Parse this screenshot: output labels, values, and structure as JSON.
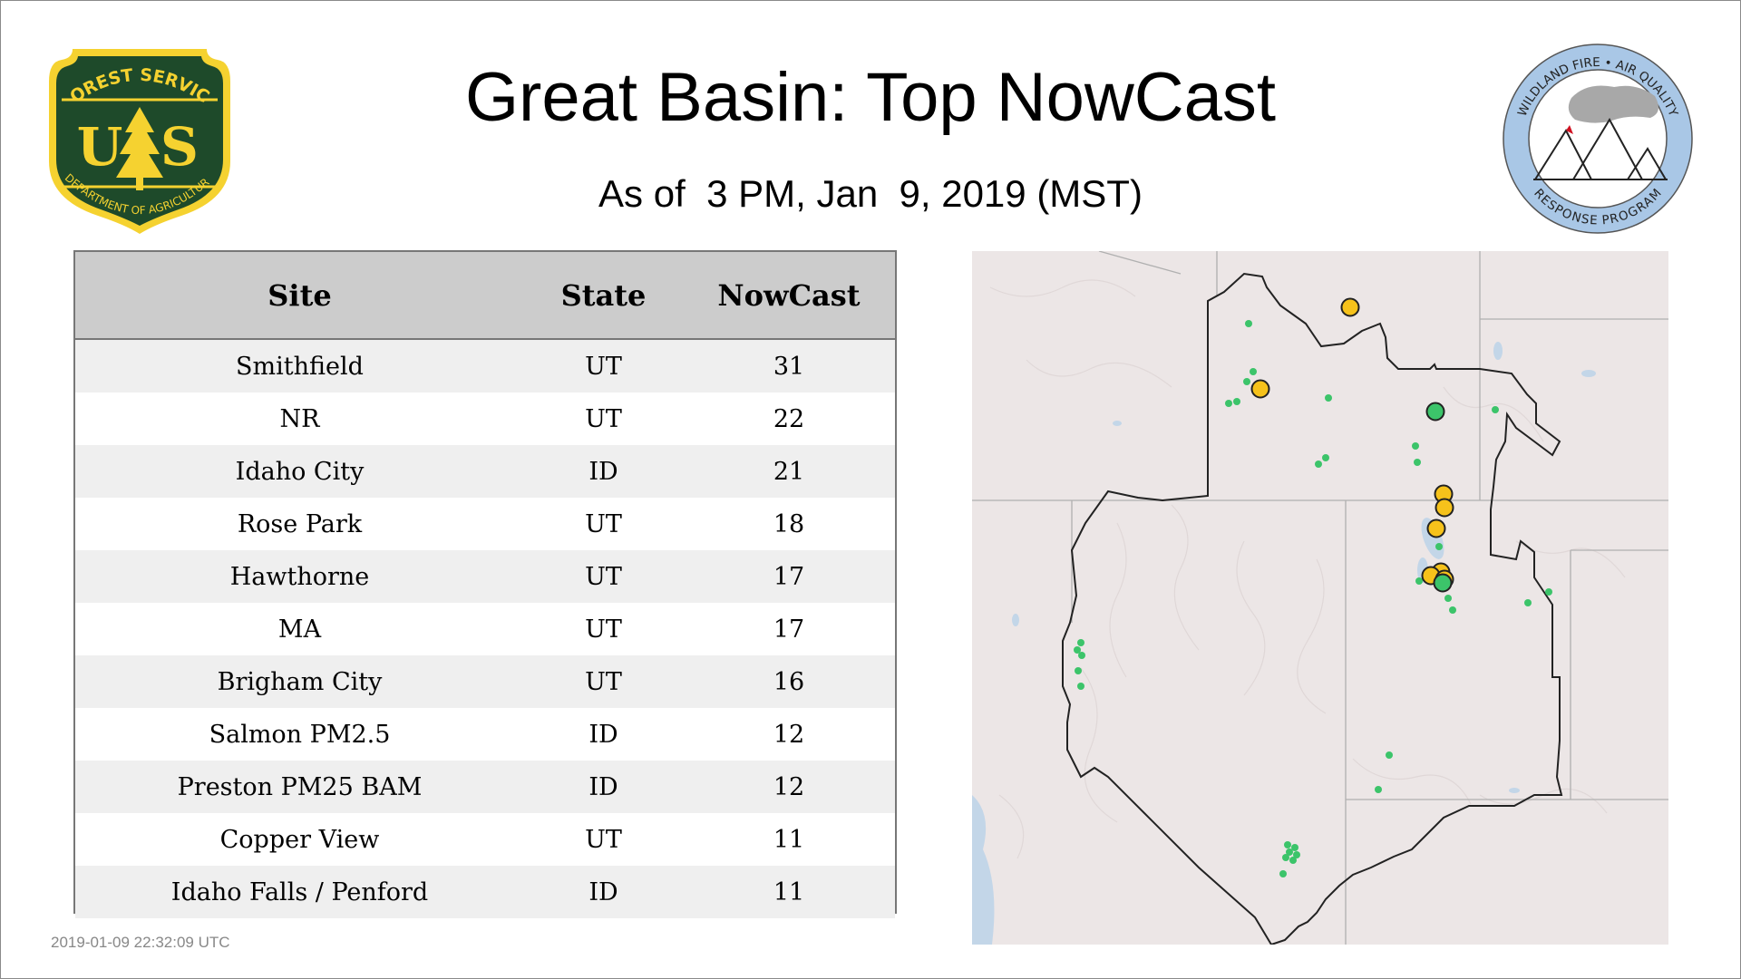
{
  "title": "Great Basin: Top NowCast",
  "subtitle": "As of  3 PM, Jan  9, 2019 (MST)",
  "timestamp": "2019-01-09 22:32:09 UTC",
  "logos": {
    "usfs": {
      "top_text": "FOREST SERVICE",
      "letters": "U S",
      "bottom_text": "DEPARTMENT OF AGRICULTURE",
      "colors": {
        "shield": "#1e4a2a",
        "gold": "#f5d230"
      }
    },
    "wfaq": {
      "top_text": "WILDLAND FIRE • AIR QUALITY",
      "bottom_text": "RESPONSE PROGRAM",
      "colors": {
        "ring": "#a9c7e6",
        "smoke": "#a8a8a8",
        "flame": "#d01020"
      }
    }
  },
  "table": {
    "headers": [
      "Site",
      "State",
      "NowCast"
    ],
    "rows": [
      {
        "site": "Smithfield",
        "state": "UT",
        "nowcast": "31"
      },
      {
        "site": "NR",
        "state": "UT",
        "nowcast": "22"
      },
      {
        "site": "Idaho City",
        "state": "ID",
        "nowcast": "21"
      },
      {
        "site": "Rose Park",
        "state": "UT",
        "nowcast": "18"
      },
      {
        "site": "Hawthorne",
        "state": "UT",
        "nowcast": "17"
      },
      {
        "site": "MA",
        "state": "UT",
        "nowcast": "17"
      },
      {
        "site": "Brigham City",
        "state": "UT",
        "nowcast": "16"
      },
      {
        "site": "Salmon PM2.5",
        "state": "ID",
        "nowcast": "12"
      },
      {
        "site": "Preston PM25 BAM",
        "state": "ID",
        "nowcast": "12"
      },
      {
        "site": "Copper View",
        "state": "UT",
        "nowcast": "11"
      },
      {
        "site": "Idaho Falls / Penford",
        "state": "ID",
        "nowcast": "11"
      }
    ]
  },
  "map": {
    "colors": {
      "background": "#ece6e6",
      "water": "#c3d6e8",
      "region_outline": "#222222",
      "state_lines": "#b0b0b0",
      "marker_good": "#3cc46a",
      "marker_moderate": "#f6c21b",
      "marker_outline": "#222222"
    }
  }
}
